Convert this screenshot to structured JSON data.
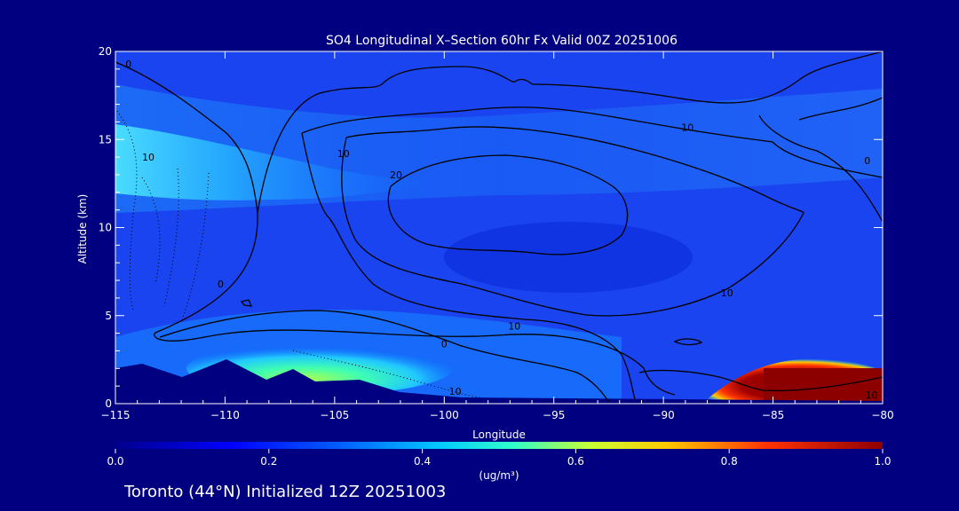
{
  "chart_data": {
    "type": "heatmap",
    "title": "SO4 Longitudinal X–Section 60hr  Fx Valid 00Z 20251006",
    "xlabel": "Longitude",
    "ylabel": "Altitude (km)",
    "xlim": [
      -115,
      -80
    ],
    "ylim": [
      0,
      20
    ],
    "x_ticks": [
      -115,
      -110,
      -105,
      -100,
      -95,
      -90,
      -85,
      -80
    ],
    "x_tick_labels": [
      "−115",
      "−110",
      "−105",
      "−100",
      "−95",
      "−90",
      "−85",
      "−80"
    ],
    "y_ticks": [
      0,
      5,
      10,
      15,
      20
    ],
    "y_tick_labels": [
      "0",
      "5",
      "10",
      "15",
      "20"
    ],
    "colorbar": {
      "min": 0.0,
      "max": 1.0,
      "ticks": [
        0.0,
        0.2,
        0.4,
        0.6,
        0.8,
        1.0
      ],
      "tick_labels": [
        "0.0",
        "0.2",
        "0.4",
        "0.6",
        "0.8",
        "1.0"
      ],
      "unit": "(ug/m³)",
      "colors": [
        "#00008c",
        "#0000ff",
        "#0064ff",
        "#00c8ff",
        "#32ffc8",
        "#c8ff32",
        "#ffc800",
        "#ff3200",
        "#8c0000"
      ]
    },
    "contour_labels": [
      {
        "text": "0",
        "lon": -114.4,
        "alt": 19.1
      },
      {
        "text": "10",
        "lon": -113.5,
        "alt": 13.8
      },
      {
        "text": "10",
        "lon": -104.6,
        "alt": 14.0
      },
      {
        "text": "20",
        "lon": -102.2,
        "alt": 12.8
      },
      {
        "text": "10",
        "lon": -88.9,
        "alt": 15.5
      },
      {
        "text": "0",
        "lon": -80.7,
        "alt": 13.6
      },
      {
        "text": "0",
        "lon": -110.2,
        "alt": 6.6
      },
      {
        "text": "0",
        "lon": -100.0,
        "alt": 3.2
      },
      {
        "text": "10",
        "lon": -96.8,
        "alt": 4.2
      },
      {
        "text": "10",
        "lon": -87.1,
        "alt": 6.1
      },
      {
        "text": "10",
        "lon": -99.5,
        "alt": 0.5
      },
      {
        "text": "10",
        "lon": -80.5,
        "alt": 0.3
      }
    ]
  },
  "footer": {
    "text": "Toronto (44°N) Initialized 12Z 20251003"
  }
}
